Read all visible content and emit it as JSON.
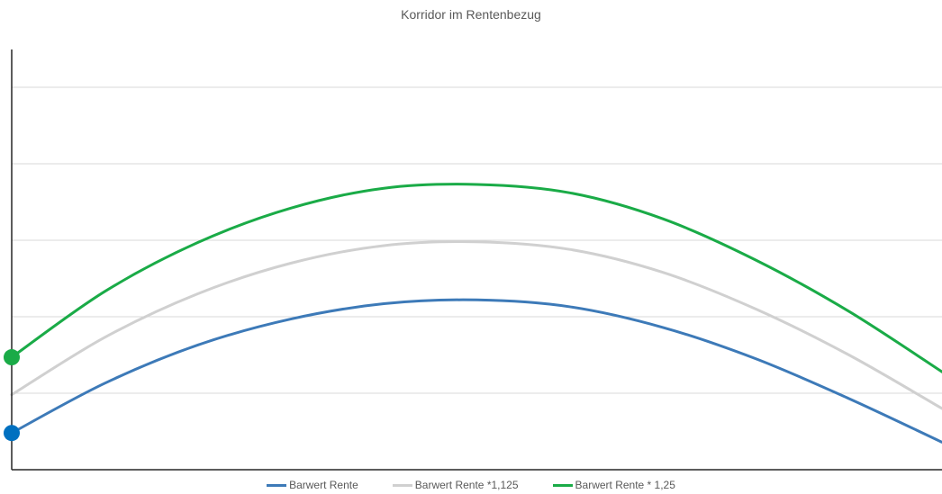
{
  "chart_data": {
    "type": "line",
    "title": "Korridor im Rentenbezug",
    "xlabel": "",
    "ylabel": "",
    "x_ticks_shown": false,
    "y_ticks_shown": false,
    "grid": "horizontal",
    "legend_position": "bottom",
    "x": [
      0,
      0.1,
      0.2,
      0.3,
      0.4,
      0.5,
      0.6,
      0.7,
      0.8,
      0.9,
      1.0
    ],
    "xlim": [
      0,
      1
    ],
    "ylim": [
      0,
      5
    ],
    "series": [
      {
        "name": "Barwert Rente",
        "color": "#3d7ab8",
        "values": [
          0.48,
          1.13,
          1.63,
          1.97,
          2.17,
          2.22,
          2.13,
          1.86,
          1.45,
          0.93,
          0.36
        ],
        "start_marker": true,
        "marker_color": "#0070c0"
      },
      {
        "name": "Barwert Rente *1,125",
        "color": "#d0d0d0",
        "values": [
          0.98,
          1.73,
          2.3,
          2.7,
          2.93,
          2.98,
          2.88,
          2.58,
          2.1,
          1.5,
          0.8
        ],
        "start_marker": false
      },
      {
        "name": "Barwert Rente * 1,25",
        "color": "#1aab47",
        "values": [
          1.47,
          2.33,
          2.97,
          3.42,
          3.68,
          3.73,
          3.62,
          3.28,
          2.74,
          2.07,
          1.28
        ],
        "start_marker": true,
        "marker_color": "#1aab47"
      }
    ]
  }
}
